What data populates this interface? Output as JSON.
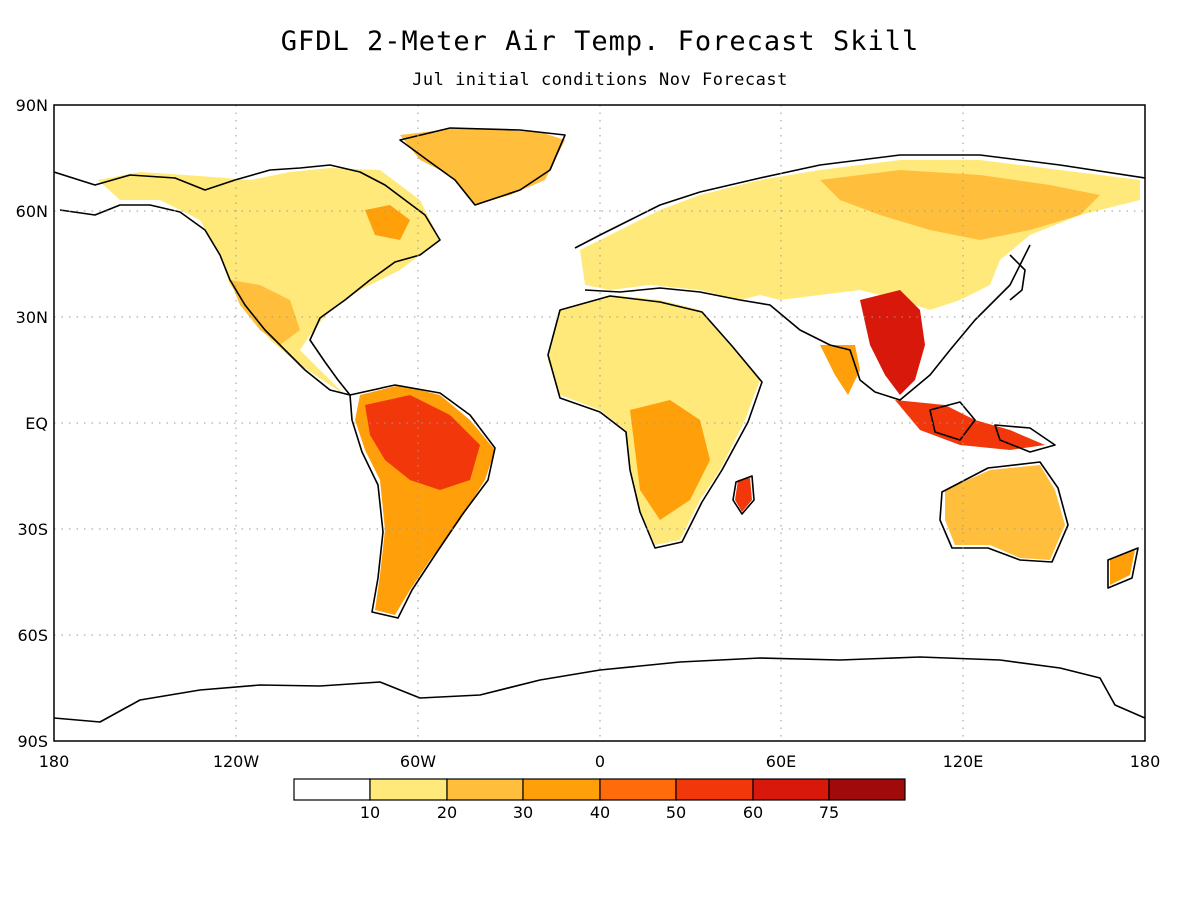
{
  "title": "GFDL 2-Meter Air Temp. Forecast Skill",
  "subtitle": "Jul initial conditions   Nov Forecast",
  "axes": {
    "lat_labels": [
      "90N",
      "60N",
      "30N",
      "EQ",
      "30S",
      "60S",
      "90S"
    ],
    "lon_labels": [
      "180",
      "120W",
      "60W",
      "0",
      "60E",
      "120E",
      "180"
    ],
    "grid": "dotted"
  },
  "colorbar": {
    "colors": [
      "#ffffff",
      "#ffe97a",
      "#ffbe3c",
      "#ffa00a",
      "#ff6a0a",
      "#f2380a",
      "#d8180a",
      "#a00a0a"
    ],
    "labels": [
      "10",
      "20",
      "30",
      "40",
      "50",
      "60",
      "75"
    ]
  }
}
